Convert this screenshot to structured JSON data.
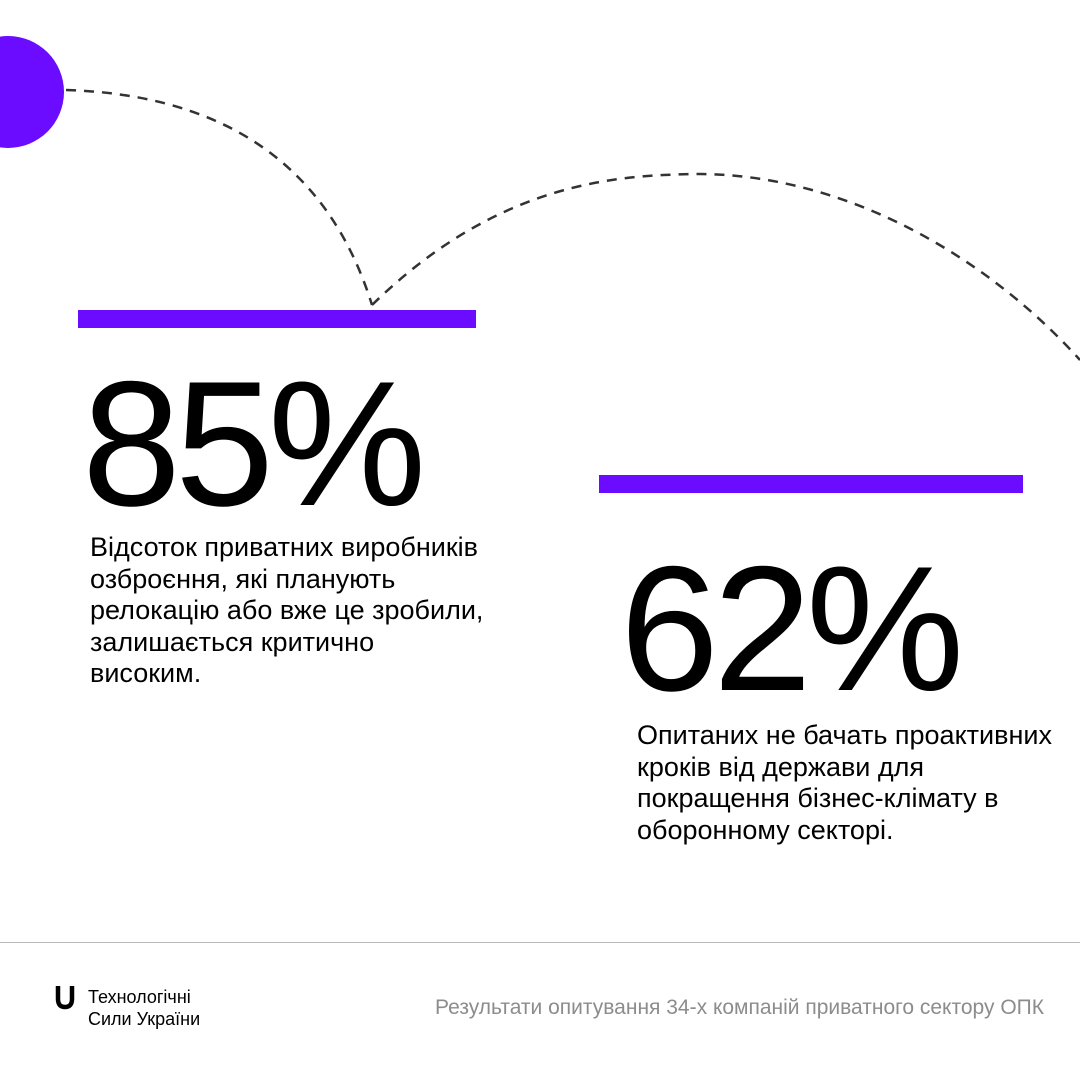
{
  "colors": {
    "accent": "#6B0BFF",
    "text": "#000000",
    "muted": "#8C8C8C",
    "background": "#FFFFFF",
    "divider": "#B9B9B9"
  },
  "stats": [
    {
      "value": "85%",
      "description": "Відсоток приватних виробників озброєння, які планують релокацію або вже це зробили, залишається критично високим."
    },
    {
      "value": "62%",
      "description": "Опитаних не бачать проактивних кроків від держави для покращення бізнес-клімату в оборонному секторі."
    }
  ],
  "footer": {
    "brand_line_1": "Технологічні",
    "brand_line_2": "Сили України",
    "caption": "Результати опитування 34-х компаній приватного сектору ОПК"
  },
  "icons": {
    "logo": "u-shape-logo-icon",
    "decoration": "circle-dot-icon"
  }
}
